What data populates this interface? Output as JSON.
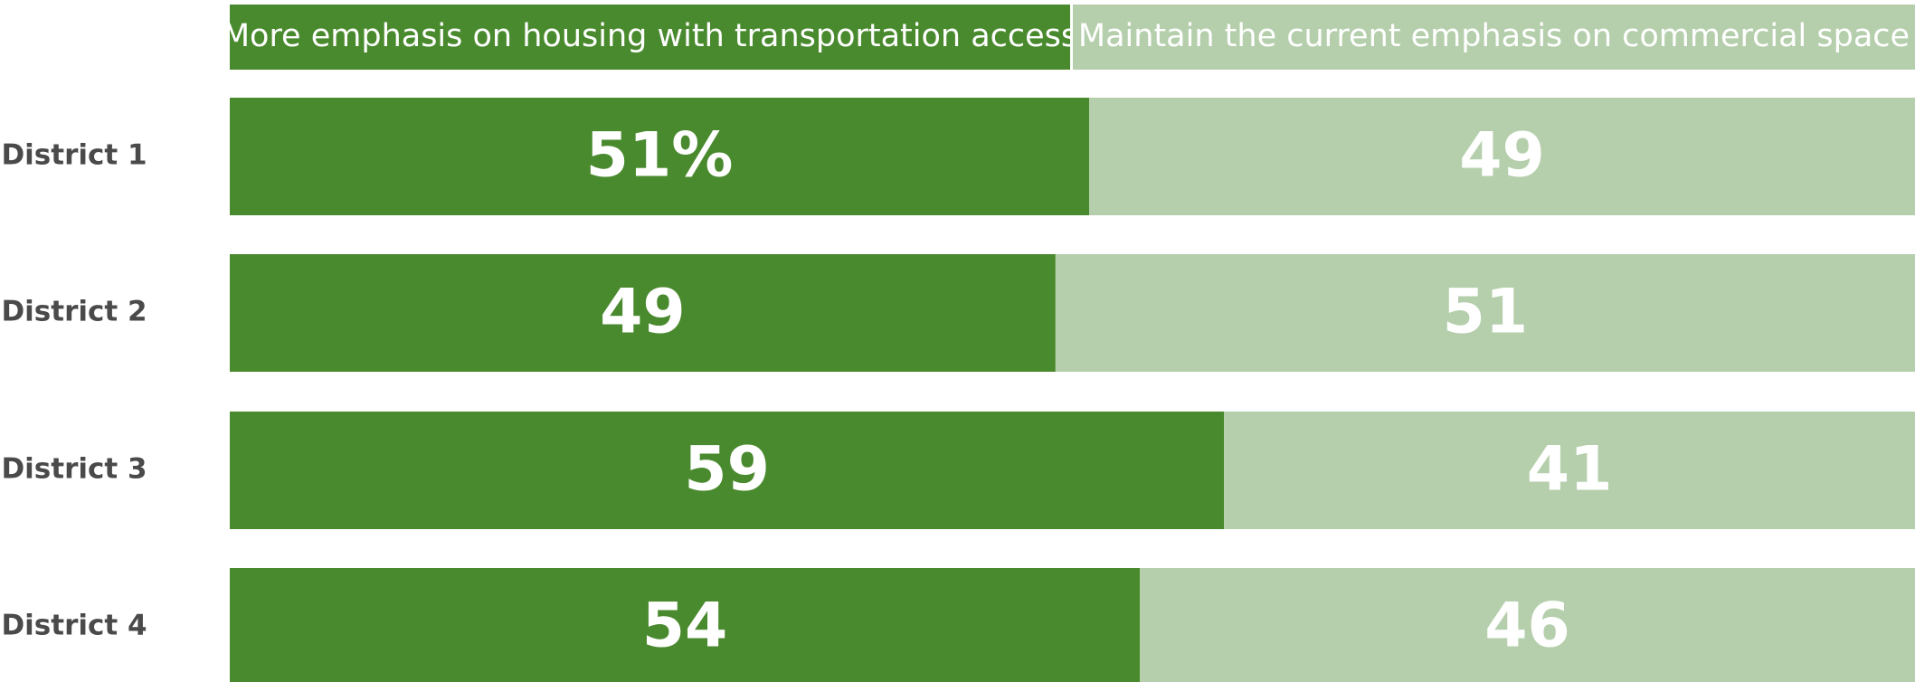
{
  "chart_data": {
    "type": "stacked-bar",
    "orientation": "horizontal",
    "legend": "top",
    "categories": [
      "District 1",
      "District 2",
      "District 3",
      "District 4"
    ],
    "series": [
      {
        "name": "More emphasis on housing with transportation access",
        "color": "#4a8a2e",
        "values": [
          51,
          49,
          59,
          54
        ],
        "value_labels": [
          "51%",
          "49",
          "59",
          "54"
        ]
      },
      {
        "name": "Maintain the current emphasis on commercial space",
        "color": "#b5cfac",
        "values": [
          49,
          51,
          41,
          46
        ]
      }
    ]
  }
}
